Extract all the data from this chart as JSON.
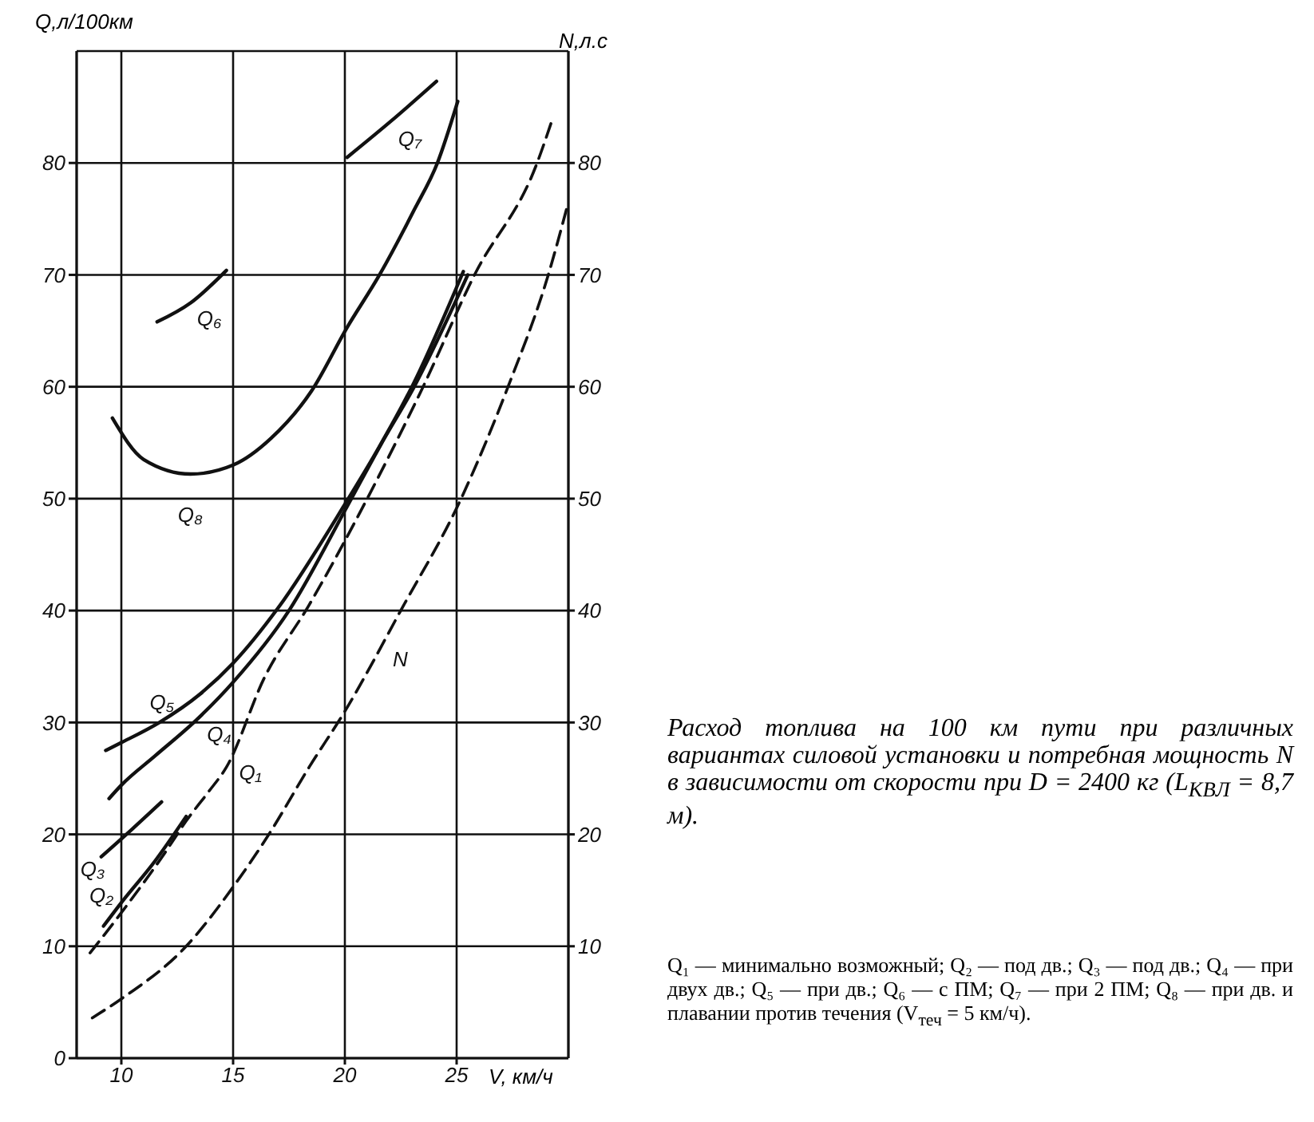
{
  "chart_data": {
    "type": "line",
    "title": "Расход топлива на 100 км пути при различных вариантах силовой установки и потребная мощность N в зависимости от скорости при D = 2400 кг (L$_{КВЛ}$ = 8,7 м).",
    "xlabel": "V, км/ч",
    "ylabel": "Q,л/100км",
    "y2label": "N,л.с",
    "xlim": [
      8,
      30
    ],
    "xticks": [
      10,
      15,
      20,
      25
    ],
    "ylim": [
      0,
      90
    ],
    "yticks": [
      0,
      10,
      20,
      30,
      40,
      50,
      60,
      70,
      80
    ],
    "y2lim": [
      0,
      90
    ],
    "y2ticks": [
      10,
      20,
      30,
      40,
      50,
      60,
      70,
      80
    ],
    "grid": true,
    "series": [
      {
        "name": "Q₁",
        "color": "#111111",
        "line_style": "dashed",
        "x": [
          8.6,
          10,
          12,
          12.9,
          13.9,
          14.7,
          16.4,
          18.4,
          21,
          23.5,
          25.8,
          28.6,
          29.3
        ],
        "values": [
          9.4,
          13,
          18.5,
          21.2,
          23.8,
          26,
          34,
          40.5,
          50,
          60,
          70,
          80,
          84
        ]
      },
      {
        "name": "Q₂",
        "color": "#111111",
        "x": [
          9.2,
          10,
          11.5,
          12.9
        ],
        "values": [
          11.8,
          13.9,
          17.6,
          21.6
        ]
      },
      {
        "name": "Q₃",
        "color": "#111111",
        "x": [
          9.1,
          10.5,
          11.8
        ],
        "values": [
          18,
          20.5,
          22.9
        ]
      },
      {
        "name": "Q₄",
        "color": "#111111",
        "x": [
          9.45,
          10,
          11.5,
          13.4,
          15,
          17.5,
          20.1,
          21.6,
          23.1,
          25.5
        ],
        "values": [
          23.2,
          24.4,
          27,
          30.3,
          33.6,
          40,
          49.3,
          54.8,
          60,
          70
        ]
      },
      {
        "name": "Q₅",
        "color": "#111111",
        "x": [
          9.3,
          10,
          11.7,
          13.5,
          15,
          17,
          20,
          21.5,
          23,
          25.3
        ],
        "values": [
          27.5,
          28.2,
          30,
          32.5,
          35.3,
          40.2,
          49.5,
          54.5,
          60,
          70.3
        ]
      },
      {
        "name": "Q₆",
        "color": "#111111",
        "x": [
          11.6,
          13.1,
          14.7
        ],
        "values": [
          65.8,
          67.5,
          70.4
        ]
      },
      {
        "name": "Q₇",
        "color": "#111111",
        "x": [
          20.1,
          22.1,
          24.1
        ],
        "values": [
          80.5,
          83.8,
          87.3
        ]
      },
      {
        "name": "Q₈",
        "color": "#111111",
        "x": [
          9.6,
          11,
          13.1,
          15,
          16.7,
          18.5,
          20.1,
          21.55,
          23.1,
          24.14,
          25.05
        ],
        "values": [
          57.2,
          53.5,
          52.2,
          53,
          55.4,
          59.6,
          65.3,
          70,
          75.8,
          80,
          85.5
        ]
      },
      {
        "name": "N",
        "color": "#111111",
        "axis": "y2",
        "line_style": "dashed",
        "x": [
          8.7,
          10,
          12.9,
          15,
          16.6,
          18.4,
          20,
          22.5,
          25.2,
          27.3,
          29.1,
          30
        ],
        "values": [
          3.6,
          5.3,
          10,
          15.3,
          20,
          26,
          31,
          40,
          50,
          60,
          70,
          76.5
        ]
      }
    ],
    "annotations": [
      "Q₁ — минимально возможный; Q₂ — под дв.; Q₃ — под дв.; Q₄ — при двух дв.; Q₅ — при дв.; Q₆ — с ПМ; Q₇ — при 2 ПМ; Q₈ — при дв. и плавании против течения (V$_{теч}$ = 5 км/ч)."
    ]
  }
}
